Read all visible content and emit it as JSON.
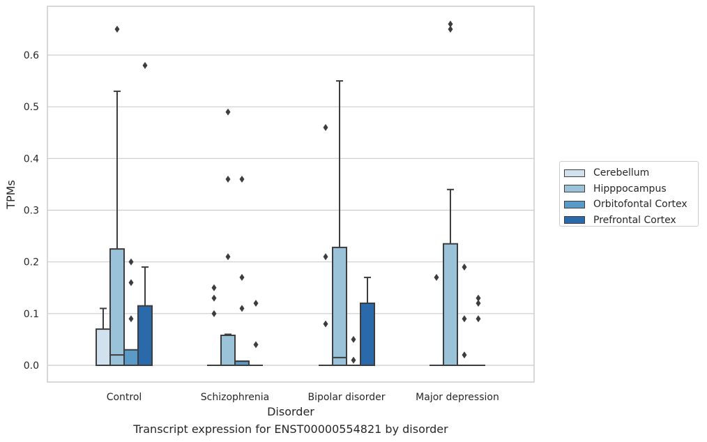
{
  "chart_data": {
    "type": "boxplot",
    "xlabel": "Disorder",
    "ylabel": "TPMs",
    "caption": "Transcript expression for ENST00000554821 by disorder",
    "ylim": [
      -0.033,
      0.695
    ],
    "yticks": [
      "0.0",
      "0.1",
      "0.2",
      "0.3",
      "0.4",
      "0.5",
      "0.6"
    ],
    "grid": "horizontal",
    "legend_position": "right",
    "categories": [
      "Control",
      "Schizophrenia",
      "Bipolar disorder",
      "Major depression"
    ],
    "series": [
      {
        "name": "Cerebellum",
        "color": "#d1e1ee",
        "boxes": [
          {
            "min": 0.0,
            "q1": 0.0,
            "median": 0.0,
            "q3": 0.07,
            "max": 0.11,
            "outliers": []
          },
          {
            "min": 0.0,
            "q1": 0.0,
            "median": 0.0,
            "q3": 0.0,
            "max": 0.0,
            "outliers": [
              0.1,
              0.13,
              0.15
            ]
          },
          {
            "min": 0.0,
            "q1": 0.0,
            "median": 0.0,
            "q3": 0.0,
            "max": 0.0,
            "outliers": [
              0.08,
              0.21,
              0.46
            ]
          },
          {
            "min": 0.0,
            "q1": 0.0,
            "median": 0.0,
            "q3": 0.0,
            "max": 0.0,
            "outliers": [
              0.17
            ]
          }
        ]
      },
      {
        "name": "Hipppocampus",
        "color": "#9ac2d9",
        "boxes": [
          {
            "min": 0.0,
            "q1": 0.0,
            "median": 0.02,
            "q3": 0.225,
            "max": 0.53,
            "outliers": [
              0.65
            ]
          },
          {
            "min": 0.0,
            "q1": 0.0,
            "median": 0.058,
            "q3": 0.058,
            "max": 0.06,
            "outliers": [
              0.21,
              0.36,
              0.49
            ]
          },
          {
            "min": 0.0,
            "q1": 0.0,
            "median": 0.015,
            "q3": 0.228,
            "max": 0.55,
            "outliers": []
          },
          {
            "min": 0.0,
            "q1": 0.0,
            "median": 0.0,
            "q3": 0.235,
            "max": 0.34,
            "outliers": [
              0.65,
              0.66
            ]
          }
        ]
      },
      {
        "name": "Orbitofontal Cortex",
        "color": "#5a9ac6",
        "boxes": [
          {
            "min": 0.0,
            "q1": 0.0,
            "median": 0.0,
            "q3": 0.03,
            "max": 0.03,
            "outliers": [
              0.09,
              0.16,
              0.2
            ]
          },
          {
            "min": 0.0,
            "q1": 0.0,
            "median": 0.008,
            "q3": 0.008,
            "max": 0.008,
            "outliers": [
              0.11,
              0.17,
              0.36
            ]
          },
          {
            "min": 0.0,
            "q1": 0.0,
            "median": 0.0,
            "q3": 0.0,
            "max": 0.0,
            "outliers": [
              0.01,
              0.05
            ]
          },
          {
            "min": 0.0,
            "q1": 0.0,
            "median": 0.0,
            "q3": 0.0,
            "max": 0.0,
            "outliers": [
              0.02,
              0.09,
              0.19
            ]
          }
        ]
      },
      {
        "name": "Prefrontal Cortex",
        "color": "#2a6aaa",
        "boxes": [
          {
            "min": 0.0,
            "q1": 0.0,
            "median": 0.0,
            "q3": 0.115,
            "max": 0.19,
            "outliers": [
              0.58
            ]
          },
          {
            "min": 0.0,
            "q1": 0.0,
            "median": 0.0,
            "q3": 0.0,
            "max": 0.0,
            "outliers": [
              0.04,
              0.12
            ]
          },
          {
            "min": 0.0,
            "q1": 0.0,
            "median": 0.0,
            "q3": 0.12,
            "max": 0.17,
            "outliers": []
          },
          {
            "min": 0.0,
            "q1": 0.0,
            "median": 0.0,
            "q3": 0.0,
            "max": 0.0,
            "outliers": [
              0.09,
              0.12,
              0.13
            ]
          }
        ]
      }
    ]
  }
}
